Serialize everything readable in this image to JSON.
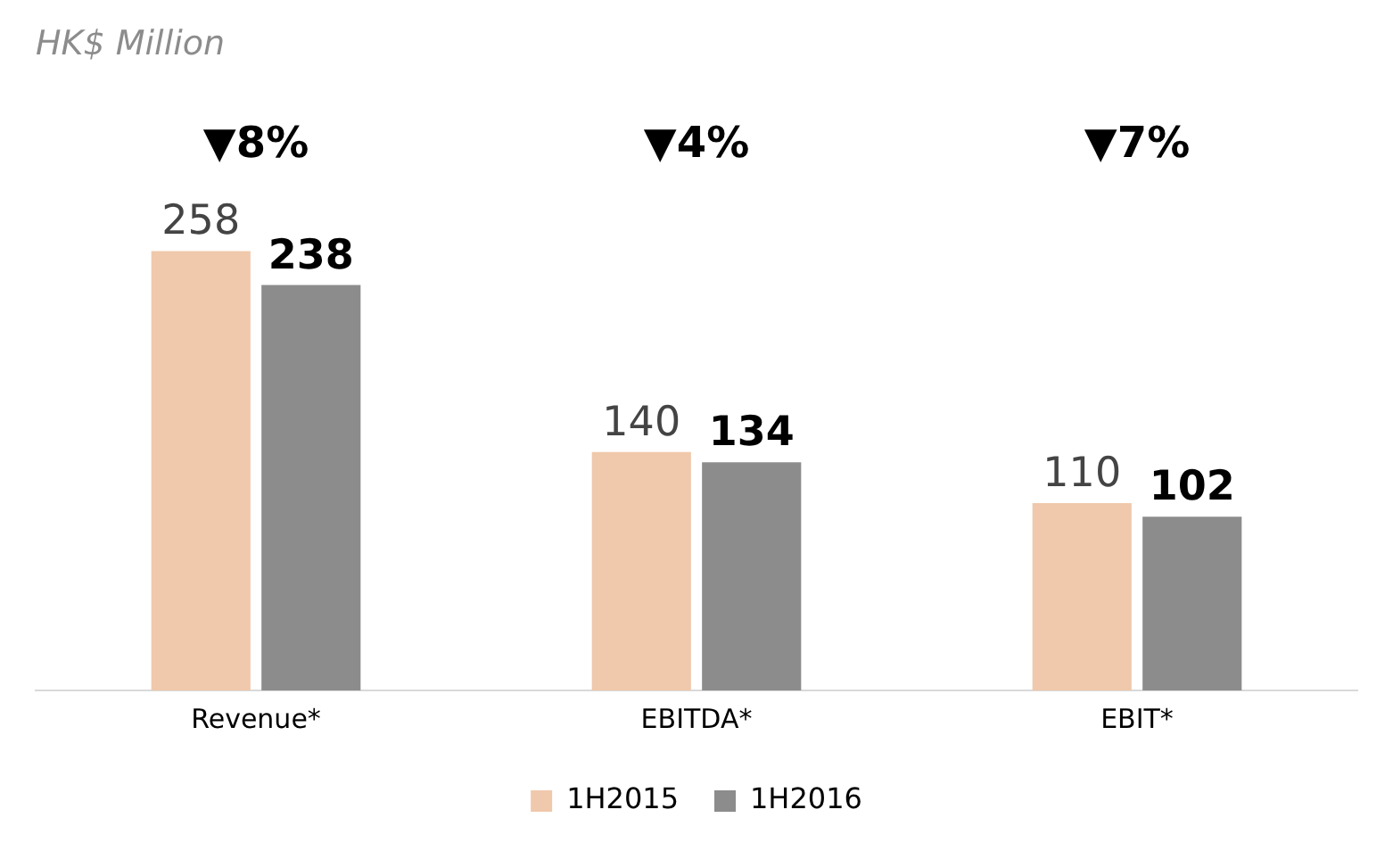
{
  "chart_data": {
    "type": "bar",
    "title": "HK$ Million",
    "categories": [
      "Revenue*",
      "EBITDA*",
      "EBIT*"
    ],
    "series": [
      {
        "name": "1H2015",
        "color": "#f0c8ab",
        "values": [
          258,
          140,
          110
        ]
      },
      {
        "name": "1H2016",
        "color": "#8c8c8c",
        "values": [
          238,
          134,
          102
        ]
      }
    ],
    "data_labels": true,
    "legend": "bottom",
    "grid": false,
    "annotations": [
      "▼8%",
      "▼4%",
      "▼7%"
    ]
  }
}
